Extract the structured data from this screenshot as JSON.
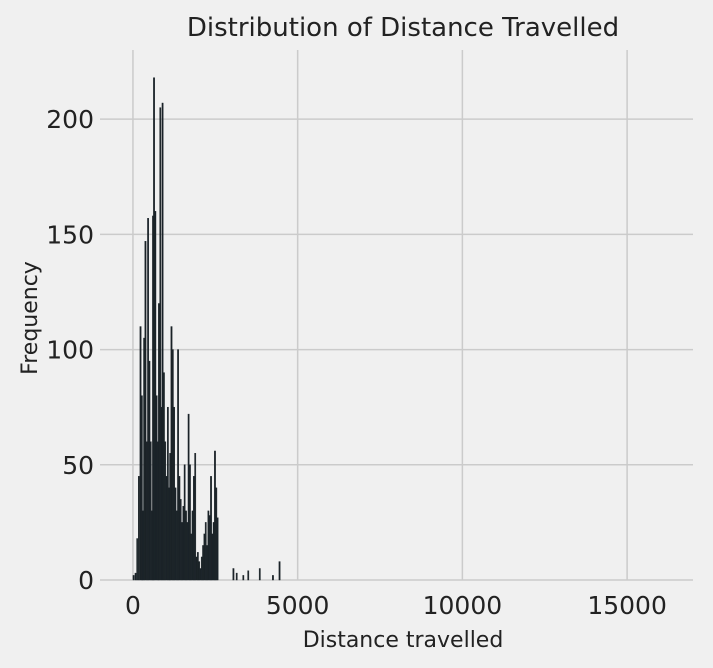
{
  "chart_data": {
    "type": "bar",
    "title": "Distribution of Distance Travelled",
    "xlabel": "Distance travelled",
    "ylabel": "Frequency",
    "xlim": [
      -1000,
      17000
    ],
    "ylim": [
      0,
      230
    ],
    "xticks": [
      0,
      5000,
      10000,
      15000
    ],
    "yticks": [
      0,
      50,
      100,
      150,
      200
    ],
    "grid": true,
    "bar_color": "#1b2328",
    "background_color": "#f0f0f0",
    "grid_color": "#cbcbcb",
    "bins": [
      {
        "x": 20,
        "y": 2
      },
      {
        "x": 80,
        "y": 3
      },
      {
        "x": 130,
        "y": 18
      },
      {
        "x": 180,
        "y": 45
      },
      {
        "x": 230,
        "y": 110
      },
      {
        "x": 270,
        "y": 80
      },
      {
        "x": 300,
        "y": 30
      },
      {
        "x": 340,
        "y": 105
      },
      {
        "x": 380,
        "y": 147
      },
      {
        "x": 420,
        "y": 60
      },
      {
        "x": 460,
        "y": 157
      },
      {
        "x": 500,
        "y": 95
      },
      {
        "x": 540,
        "y": 60
      },
      {
        "x": 580,
        "y": 30
      },
      {
        "x": 610,
        "y": 158
      },
      {
        "x": 640,
        "y": 218
      },
      {
        "x": 680,
        "y": 160
      },
      {
        "x": 720,
        "y": 80
      },
      {
        "x": 760,
        "y": 60
      },
      {
        "x": 790,
        "y": 120
      },
      {
        "x": 830,
        "y": 205
      },
      {
        "x": 870,
        "y": 75
      },
      {
        "x": 900,
        "y": 207
      },
      {
        "x": 940,
        "y": 90
      },
      {
        "x": 980,
        "y": 60
      },
      {
        "x": 1020,
        "y": 45
      },
      {
        "x": 1060,
        "y": 75
      },
      {
        "x": 1100,
        "y": 40
      },
      {
        "x": 1130,
        "y": 55
      },
      {
        "x": 1170,
        "y": 110
      },
      {
        "x": 1210,
        "y": 100
      },
      {
        "x": 1250,
        "y": 75
      },
      {
        "x": 1290,
        "y": 40
      },
      {
        "x": 1330,
        "y": 30
      },
      {
        "x": 1370,
        "y": 100
      },
      {
        "x": 1410,
        "y": 45
      },
      {
        "x": 1450,
        "y": 35
      },
      {
        "x": 1490,
        "y": 25
      },
      {
        "x": 1530,
        "y": 32
      },
      {
        "x": 1570,
        "y": 50
      },
      {
        "x": 1610,
        "y": 30
      },
      {
        "x": 1650,
        "y": 25
      },
      {
        "x": 1690,
        "y": 72
      },
      {
        "x": 1730,
        "y": 50
      },
      {
        "x": 1770,
        "y": 20
      },
      {
        "x": 1810,
        "y": 30
      },
      {
        "x": 1850,
        "y": 45
      },
      {
        "x": 1890,
        "y": 55
      },
      {
        "x": 1930,
        "y": 10
      },
      {
        "x": 1970,
        "y": 12
      },
      {
        "x": 2010,
        "y": 8
      },
      {
        "x": 2050,
        "y": 5
      },
      {
        "x": 2090,
        "y": 10
      },
      {
        "x": 2130,
        "y": 15
      },
      {
        "x": 2170,
        "y": 20
      },
      {
        "x": 2210,
        "y": 25
      },
      {
        "x": 2250,
        "y": 15
      },
      {
        "x": 2290,
        "y": 30
      },
      {
        "x": 2330,
        "y": 28
      },
      {
        "x": 2370,
        "y": 45
      },
      {
        "x": 2410,
        "y": 20
      },
      {
        "x": 2450,
        "y": 25
      },
      {
        "x": 2490,
        "y": 56
      },
      {
        "x": 2530,
        "y": 40
      },
      {
        "x": 2570,
        "y": 27
      },
      {
        "x": 3050,
        "y": 5
      },
      {
        "x": 3150,
        "y": 3
      },
      {
        "x": 3350,
        "y": 2
      },
      {
        "x": 3500,
        "y": 4
      },
      {
        "x": 3850,
        "y": 5
      },
      {
        "x": 4250,
        "y": 2
      },
      {
        "x": 4450,
        "y": 8
      }
    ]
  }
}
